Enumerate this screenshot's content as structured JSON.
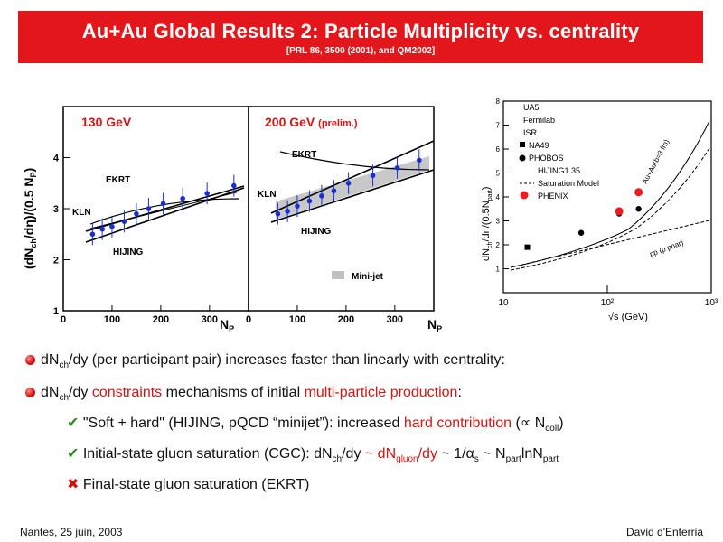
{
  "title": "Au+Au Global Results 2: Particle Multiplicity vs. centrality",
  "subtitle": "[PRL 86, 3500 (2001), and QM2002]",
  "left_figure": {
    "ylabel": "(dN_ch/dη)/(0.5 N_p)",
    "panels": [
      {
        "label": "130 GeV",
        "label_note": ""
      },
      {
        "label": "200 GeV",
        "label_note": "(prelim.)"
      }
    ],
    "xlabel": "N_P",
    "x_ticks": [
      "0",
      "100",
      "200",
      "300"
    ],
    "y_ticks": [
      "1",
      "2",
      "3",
      "4"
    ],
    "curve_labels": {
      "ekrt": "EKRT",
      "kln": "KLN",
      "hijing": "HIJING",
      "minijet": "Mini-jet"
    }
  },
  "right_figure": {
    "ylabel": "dN_ch/dη/(0.5N_part)",
    "xlabel": "√s (GeV)",
    "x_ticks": [
      "10",
      "10²",
      "10³"
    ],
    "y_ticks": [
      "1",
      "2",
      "3",
      "4",
      "5",
      "6",
      "7",
      "8"
    ],
    "legend": [
      "UA5",
      "Fermilab",
      "ISR",
      "NA49",
      "PHOBOS",
      "HIJING1.35",
      "Saturation Model",
      "PHENIX"
    ],
    "curve_labels": {
      "auau": "Au+Au(b=3 fm)",
      "pp": "pp (p pbar)"
    }
  },
  "chart_data": [
    {
      "type": "scatter",
      "title": "130 GeV",
      "xlabel": "N_P",
      "ylabel": "(dN_ch/dη)/(0.5 N_p)",
      "xlim": [
        0,
        380
      ],
      "ylim": [
        1,
        5
      ],
      "series": [
        {
          "name": "",
          "x": [
            60,
            80,
            100,
            125,
            150,
            175,
            205,
            245,
            295,
            350
          ],
          "y": [
            2.5,
            2.6,
            2.65,
            2.75,
            2.9,
            3.0,
            3.1,
            3.2,
            3.3,
            3.45
          ]
        }
      ]
    },
    {
      "type": "scatter",
      "title": "200 GeV (prelim.)",
      "xlabel": "N_P",
      "ylabel": "(dN_ch/dη)/(0.5 N_p)",
      "xlim": [
        0,
        380
      ],
      "ylim": [
        1,
        5
      ],
      "series": [
        {
          "name": "",
          "x": [
            60,
            80,
            100,
            125,
            150,
            175,
            205,
            255,
            305,
            350
          ],
          "y": [
            2.9,
            2.95,
            3.05,
            3.15,
            3.25,
            3.35,
            3.5,
            3.65,
            3.8,
            3.95
          ]
        }
      ]
    },
    {
      "type": "scatter",
      "xlabel": "√s (GeV)",
      "ylabel": "dN_ch/dη/(0.5N_part)",
      "xscale": "log",
      "xlim": [
        10,
        1000
      ],
      "ylim": [
        0,
        8
      ],
      "series": [
        {
          "name": "NA49",
          "x": [
            17
          ],
          "y": [
            1.9
          ]
        },
        {
          "name": "PHOBOS",
          "x": [
            56,
            130,
            200
          ],
          "y": [
            2.5,
            3.3,
            3.5
          ]
        },
        {
          "name": "PHENIX",
          "x": [
            130,
            200
          ],
          "y": [
            3.4,
            4.2
          ]
        }
      ]
    }
  ],
  "bullets": [
    {
      "pre": "dN",
      "sub": "ch",
      "text": "/dy (per participant pair) increases faster than linearly with centrality:"
    },
    {
      "pre": "dN",
      "sub": "ch",
      "text1": "/dy ",
      "red1": "constraints",
      "text2": " mechanisms of initial ",
      "red2": "multi-particle production",
      "text3": ":"
    }
  ],
  "subbullets": [
    {
      "text": "\"Soft + hard\" (HIJING, pQCD “minijet”): increased ",
      "red": "hard contribution",
      "tail": " (∝ N",
      "sub": "coll",
      "end": ")"
    },
    {
      "p1": "Initial-state gluon saturation (CGC): dN",
      "s1": "ch",
      "p2": "/dy ",
      "r1": "~ dN",
      "s2": "gluon",
      "r2": "/dy",
      "p3": " ~ 1/α",
      "s3": "s",
      "p4": " ~ N",
      "s4": "part",
      "p5": "lnN",
      "s5": "part"
    },
    {
      "text": "Final-state gluon saturation (EKRT)"
    }
  ],
  "footer": {
    "left": "Nantes, 25 juin, 2003",
    "right": "David d'Enterria"
  }
}
